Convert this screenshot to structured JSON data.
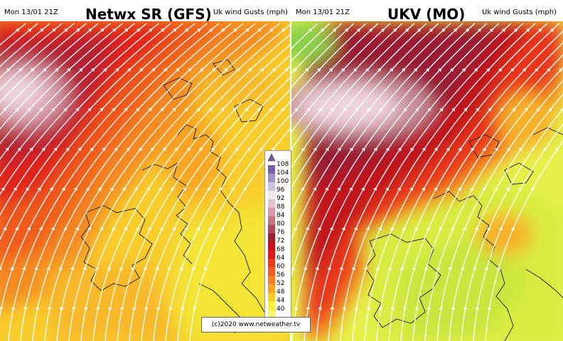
{
  "left_panel": {
    "date": "Mon 13/01 21Z",
    "title": "Netwx SR (GFS)",
    "param": "Uk wind Gusts (mph)"
  },
  "right_panel": {
    "date": "Mon 13/01 21Z",
    "title": "UKV (MO)",
    "param": "Uk wind Gusts (mph)"
  },
  "legend": {
    "unit": "mph",
    "levels": [
      {
        "value": "108",
        "color": "#7a5fa8"
      },
      {
        "value": "104",
        "color": "#a48fc8"
      },
      {
        "value": "100",
        "color": "#cdbfe0"
      },
      {
        "value": "96",
        "color": "#f3e8ee"
      },
      {
        "value": "92",
        "color": "#e8c3cc"
      },
      {
        "value": "88",
        "color": "#d99aa6"
      },
      {
        "value": "84",
        "color": "#c87380"
      },
      {
        "value": "80",
        "color": "#b04a5a"
      },
      {
        "value": "76",
        "color": "#a0202e"
      },
      {
        "value": "72",
        "color": "#c8101c"
      },
      {
        "value": "68",
        "color": "#e01818"
      },
      {
        "value": "64",
        "color": "#ee3a1e"
      },
      {
        "value": "60",
        "color": "#f45a22"
      },
      {
        "value": "56",
        "color": "#f77e22"
      },
      {
        "value": "52",
        "color": "#f9a424"
      },
      {
        "value": "48",
        "color": "#fbcb28"
      },
      {
        "value": "44",
        "color": "#f9ee3a"
      },
      {
        "value": "40",
        "color": "#eef86a"
      }
    ]
  },
  "copyright": "(c)2020 www.netweather.tv"
}
